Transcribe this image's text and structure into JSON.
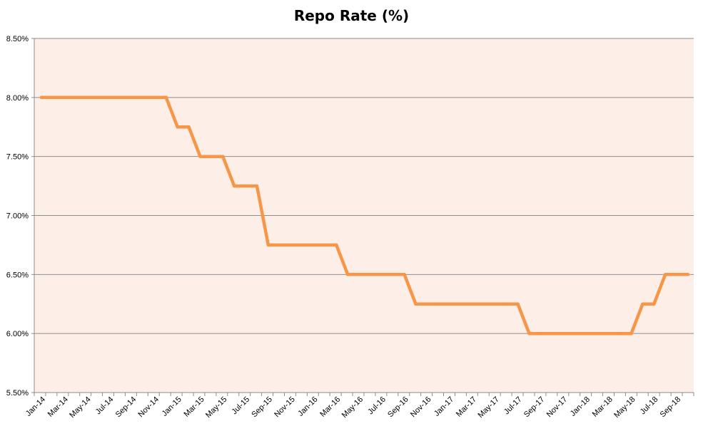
{
  "chart_data": {
    "type": "line",
    "title": "Repo Rate (%)",
    "xlabel": "",
    "ylabel": "",
    "ylim": [
      5.5,
      8.5
    ],
    "yticks": [
      "5.50%",
      "6.00%",
      "6.50%",
      "7.00%",
      "7.50%",
      "8.00%",
      "8.50%"
    ],
    "ytick_values": [
      5.5,
      6.0,
      6.5,
      7.0,
      7.5,
      8.0,
      8.5
    ],
    "xticks": [
      "Jan-14",
      "Mar-14",
      "May-14",
      "Jul-14",
      "Sep-14",
      "Nov-14",
      "Jan-15",
      "Mar-15",
      "May-15",
      "Jul-15",
      "Sep-15",
      "Nov-15",
      "Jan-16",
      "Mar-16",
      "May-16",
      "Jul-16",
      "Sep-16",
      "Nov-16",
      "Jan-17",
      "Mar-17",
      "May-17",
      "Jul-17",
      "Sep-17",
      "Nov-17",
      "Jan-18",
      "Mar-18",
      "May-18",
      "Jul-18",
      "Sep-18"
    ],
    "grid": true,
    "colors": {
      "plot_background": "#fdeee8",
      "line": "#f79646",
      "gridline": "#8c8c8c",
      "axis": "#8c8c8c"
    },
    "series": [
      {
        "x": [
          "Jan-14",
          "Feb-14",
          "Mar-14",
          "Apr-14",
          "May-14",
          "Jun-14",
          "Jul-14",
          "Aug-14",
          "Sep-14",
          "Oct-14",
          "Nov-14",
          "Dec-14",
          "Jan-15",
          "Feb-15",
          "Mar-15",
          "Apr-15",
          "May-15",
          "Jun-15",
          "Jul-15",
          "Aug-15",
          "Sep-15",
          "Oct-15",
          "Nov-15",
          "Dec-15",
          "Jan-16",
          "Feb-16",
          "Mar-16",
          "Apr-16",
          "May-16",
          "Jun-16",
          "Jul-16",
          "Aug-16",
          "Sep-16",
          "Oct-16",
          "Nov-16",
          "Dec-16",
          "Jan-17",
          "Feb-17",
          "Mar-17",
          "Apr-17",
          "May-17",
          "Jun-17",
          "Jul-17",
          "Aug-17",
          "Sep-17",
          "Oct-17",
          "Nov-17",
          "Dec-17",
          "Jan-18",
          "Feb-18",
          "Mar-18",
          "Apr-18",
          "May-18",
          "Jun-18",
          "Jul-18",
          "Aug-18",
          "Sep-18",
          "Oct-18"
        ],
        "values": [
          8.0,
          8.0,
          8.0,
          8.0,
          8.0,
          8.0,
          8.0,
          8.0,
          8.0,
          8.0,
          8.0,
          8.0,
          7.75,
          7.75,
          7.5,
          7.5,
          7.5,
          7.25,
          7.25,
          7.25,
          6.75,
          6.75,
          6.75,
          6.75,
          6.75,
          6.75,
          6.75,
          6.5,
          6.5,
          6.5,
          6.5,
          6.5,
          6.5,
          6.25,
          6.25,
          6.25,
          6.25,
          6.25,
          6.25,
          6.25,
          6.25,
          6.25,
          6.25,
          6.0,
          6.0,
          6.0,
          6.0,
          6.0,
          6.0,
          6.0,
          6.0,
          6.0,
          6.0,
          6.25,
          6.25,
          6.5,
          6.5,
          6.5
        ]
      }
    ]
  }
}
